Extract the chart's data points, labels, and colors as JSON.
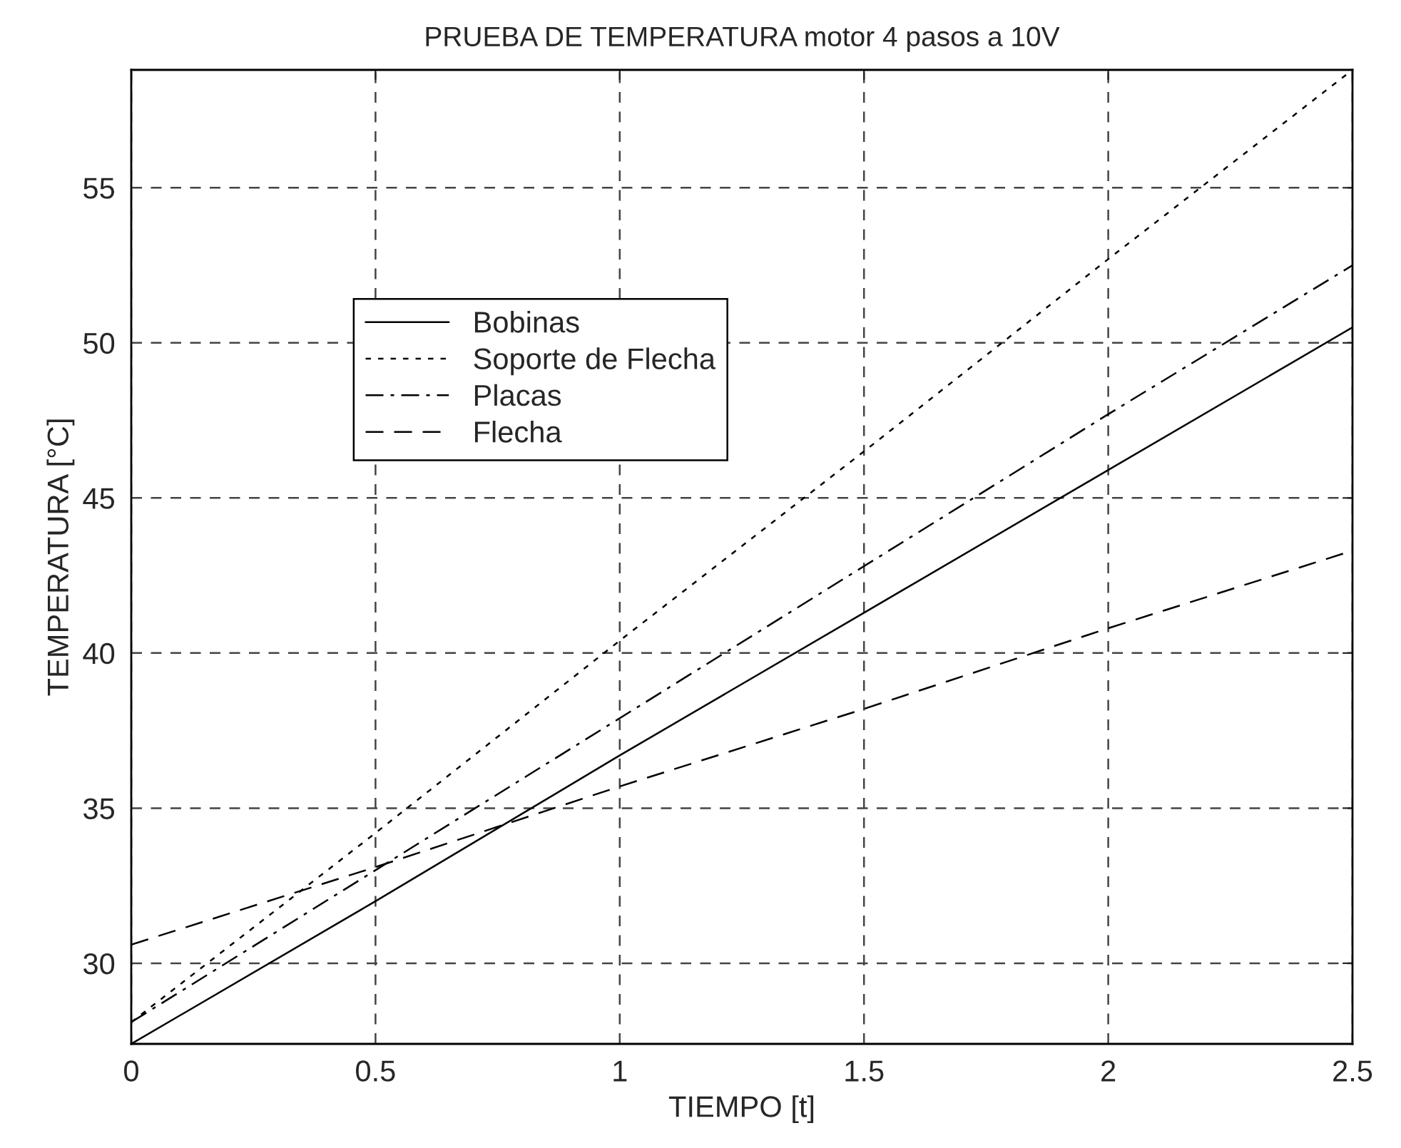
{
  "chart_data": {
    "type": "line",
    "title": "PRUEBA DE TEMPERATURA motor 4 pasos a 10V",
    "xlabel": "TIEMPO [t]",
    "ylabel": "TEMPERATURA [°C]",
    "x": [
      0,
      0.5,
      1,
      1.5,
      2,
      2.5
    ],
    "series": [
      {
        "name": "Bobinas",
        "color": "#000000",
        "line_style": "solid",
        "values": [
          27.4,
          32.0,
          36.7,
          41.3,
          45.9,
          50.5
        ]
      },
      {
        "name": "Soporte de Flecha",
        "color": "#000000",
        "line_style": "dotted",
        "values": [
          28.1,
          34.2,
          40.4,
          46.5,
          52.7,
          58.8
        ]
      },
      {
        "name": "Placas",
        "color": "#000000",
        "line_style": "dashdot",
        "values": [
          28.1,
          33.0,
          37.9,
          42.8,
          47.7,
          52.5
        ]
      },
      {
        "name": "Flecha",
        "color": "#000000",
        "line_style": "dashed",
        "values": [
          30.6,
          33.1,
          35.7,
          38.2,
          40.8,
          43.3
        ]
      }
    ],
    "xlim": [
      0,
      2.5
    ],
    "xticks": [
      0,
      0.5,
      1,
      1.5,
      2,
      2.5
    ],
    "ylim": [
      27.4,
      58.8
    ],
    "yticks": [
      30,
      35,
      40,
      45,
      50,
      55
    ],
    "grid": true,
    "legend": "top left"
  }
}
